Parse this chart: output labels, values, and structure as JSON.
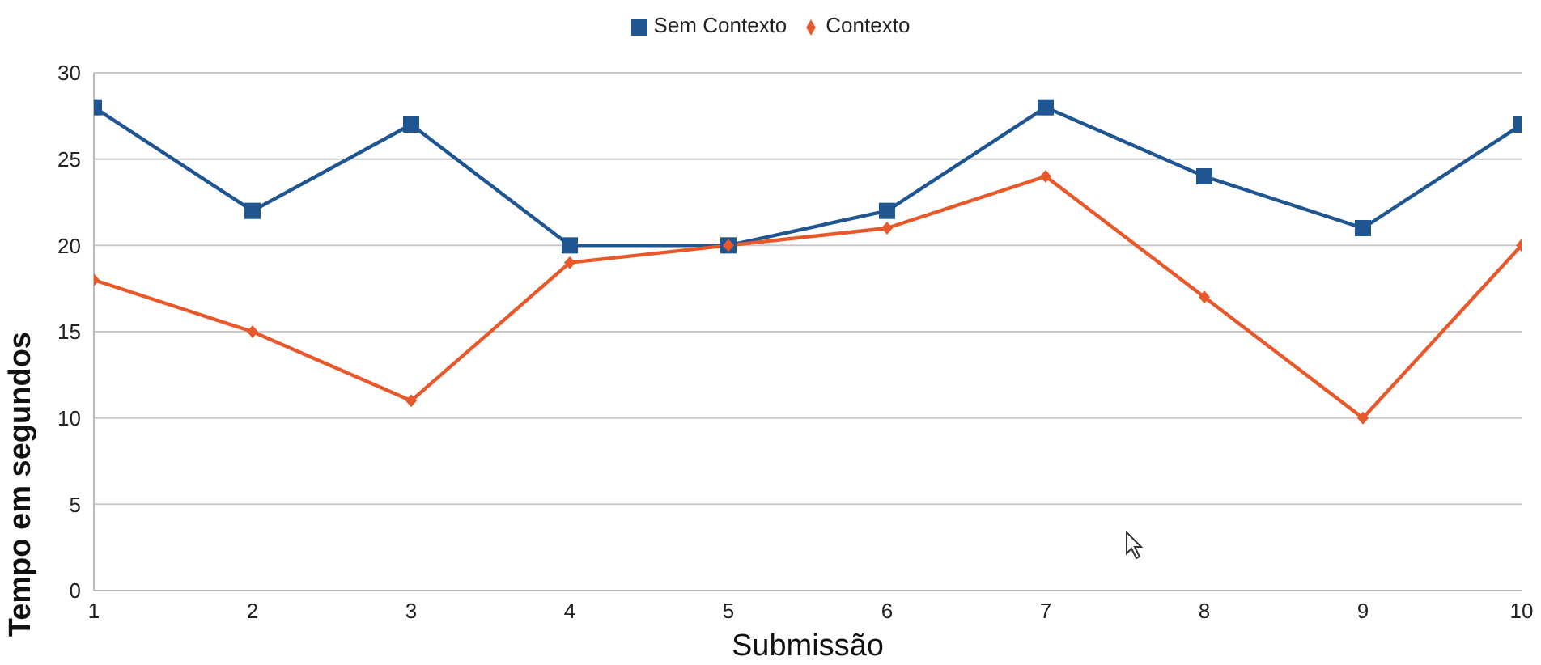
{
  "chart_data": {
    "type": "line",
    "xlabel": "Submissão",
    "ylabel": "Tempo em segundos",
    "x": [
      1,
      2,
      3,
      4,
      5,
      6,
      7,
      8,
      9,
      10
    ],
    "xlim": [
      1,
      10
    ],
    "xticks": [
      1,
      2,
      3,
      4,
      5,
      6,
      7,
      8,
      9,
      10
    ],
    "ylim": [
      0,
      30
    ],
    "yticks": [
      0,
      5,
      10,
      15,
      20,
      25,
      30
    ],
    "grid": "y",
    "legend": "top",
    "line_style": "solid",
    "series": [
      {
        "name": "Sem Contexto",
        "color": "#1f5591",
        "marker": "square",
        "values": [
          28,
          22,
          27,
          20,
          20,
          22,
          28,
          24,
          21,
          27
        ]
      },
      {
        "name": "Contexto",
        "color": "#e8582a",
        "marker": "diamond",
        "values": [
          18,
          15,
          11,
          19,
          20,
          21,
          24,
          17,
          10,
          20
        ]
      }
    ]
  }
}
